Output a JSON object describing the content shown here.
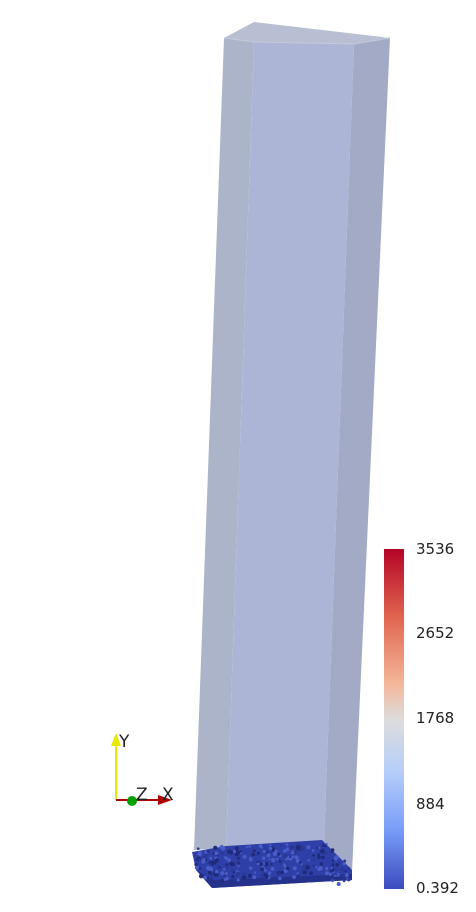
{
  "scene": {
    "domain_fill_color": "#aab4d4",
    "particles_color": "#2f3fa8"
  },
  "colorbar": {
    "max_label": "3536",
    "tick_2652": "2652",
    "tick_1768": "1768",
    "tick_884": "884",
    "min_label": "0.392",
    "colors": {
      "high": "#b40426",
      "mid": "#dddcdc",
      "low": "#3b4cc0"
    }
  },
  "orientation_axes": {
    "y_label": "Y",
    "z_label": "Z",
    "x_label": "X",
    "y_color": "#e8e800",
    "x_color": "#b00000",
    "z_color": "#00a000"
  }
}
